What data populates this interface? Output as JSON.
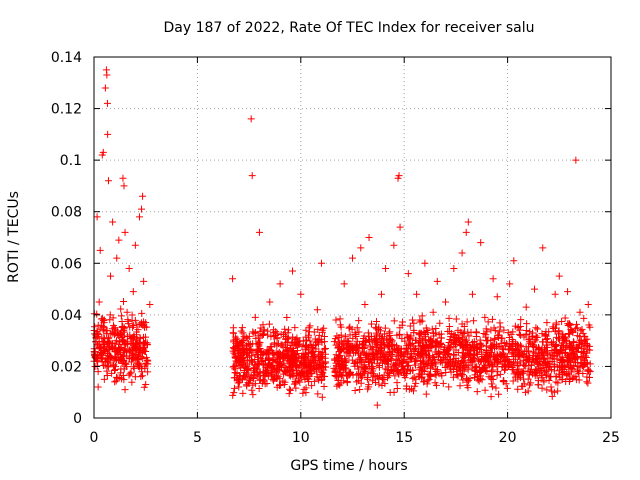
{
  "chart_data": {
    "type": "scatter",
    "title": "Day 187 of 2022, Rate Of TEC Index for receiver salu",
    "xlabel": "GPS time / hours",
    "ylabel": "ROTI / TECUs",
    "xlim": [
      0,
      25
    ],
    "ylim": [
      0,
      0.14
    ],
    "xticks": [
      "0",
      "5",
      "10",
      "15",
      "20",
      "25"
    ],
    "xtick_values": [
      0,
      5,
      10,
      15,
      20,
      25
    ],
    "yticks": [
      "0",
      "0.02",
      "0.04",
      "0.06",
      "0.08",
      "0.1",
      "0.12",
      "0.14"
    ],
    "ytick_values": [
      0,
      0.02,
      0.04,
      0.06,
      0.08,
      0.1,
      0.12,
      0.14
    ],
    "grid": true,
    "marker": "+",
    "color": "#ff0000",
    "series": [
      {
        "name": "ROTI",
        "points": [
          [
            0.0,
            0.022
          ],
          [
            0.1,
            0.031
          ],
          [
            0.15,
            0.078
          ],
          [
            0.2,
            0.018
          ],
          [
            0.25,
            0.045
          ],
          [
            0.3,
            0.065
          ],
          [
            0.35,
            0.027
          ],
          [
            0.4,
            0.102
          ],
          [
            0.45,
            0.103
          ],
          [
            0.5,
            0.038
          ],
          [
            0.55,
            0.128
          ],
          [
            0.6,
            0.135
          ],
          [
            0.62,
            0.133
          ],
          [
            0.65,
            0.122
          ],
          [
            0.66,
            0.11
          ],
          [
            0.7,
            0.092
          ],
          [
            0.75,
            0.024
          ],
          [
            0.8,
            0.055
          ],
          [
            0.9,
            0.076
          ],
          [
            1.0,
            0.035
          ],
          [
            1.1,
            0.062
          ],
          [
            1.2,
            0.069
          ],
          [
            1.3,
            0.019
          ],
          [
            1.4,
            0.093
          ],
          [
            1.45,
            0.09
          ],
          [
            1.5,
            0.072
          ],
          [
            1.6,
            0.041
          ],
          [
            1.7,
            0.058
          ],
          [
            1.8,
            0.029
          ],
          [
            1.9,
            0.049
          ],
          [
            2.0,
            0.067
          ],
          [
            2.1,
            0.023
          ],
          [
            2.2,
            0.078
          ],
          [
            2.3,
            0.081
          ],
          [
            2.35,
            0.086
          ],
          [
            2.4,
            0.053
          ],
          [
            2.5,
            0.037
          ],
          [
            2.6,
            0.021
          ],
          [
            2.7,
            0.044
          ],
          [
            0.2,
            0.012
          ],
          [
            0.5,
            0.015
          ],
          [
            1.0,
            0.014
          ],
          [
            1.5,
            0.011
          ],
          [
            2.0,
            0.016
          ],
          [
            2.5,
            0.013
          ],
          [
            6.7,
            0.054
          ],
          [
            6.8,
            0.02
          ],
          [
            7.0,
            0.012
          ],
          [
            7.2,
            0.033
          ],
          [
            7.4,
            0.027
          ],
          [
            7.6,
            0.116
          ],
          [
            7.65,
            0.094
          ],
          [
            7.8,
            0.039
          ],
          [
            8.0,
            0.072
          ],
          [
            8.2,
            0.018
          ],
          [
            8.5,
            0.045
          ],
          [
            8.8,
            0.022
          ],
          [
            9.0,
            0.052
          ],
          [
            9.2,
            0.013
          ],
          [
            9.4,
            0.031
          ],
          [
            9.6,
            0.057
          ],
          [
            9.8,
            0.025
          ],
          [
            10.0,
            0.048
          ],
          [
            10.2,
            0.016
          ],
          [
            10.4,
            0.035
          ],
          [
            10.6,
            0.028
          ],
          [
            10.8,
            0.042
          ],
          [
            11.0,
            0.06
          ],
          [
            11.1,
            0.021
          ],
          [
            11.7,
            0.038
          ],
          [
            11.9,
            0.017
          ],
          [
            12.1,
            0.052
          ],
          [
            12.3,
            0.029
          ],
          [
            12.5,
            0.062
          ],
          [
            12.7,
            0.014
          ],
          [
            12.9,
            0.066
          ],
          [
            13.1,
            0.044
          ],
          [
            13.3,
            0.07
          ],
          [
            13.5,
            0.023
          ],
          [
            13.7,
            0.005
          ],
          [
            13.9,
            0.048
          ],
          [
            14.1,
            0.058
          ],
          [
            14.3,
            0.032
          ],
          [
            14.5,
            0.067
          ],
          [
            14.7,
            0.093
          ],
          [
            14.75,
            0.094
          ],
          [
            14.8,
            0.074
          ],
          [
            15.0,
            0.019
          ],
          [
            15.2,
            0.056
          ],
          [
            15.4,
            0.038
          ],
          [
            15.6,
            0.048
          ],
          [
            15.8,
            0.026
          ],
          [
            16.0,
            0.06
          ],
          [
            16.2,
            0.015
          ],
          [
            16.4,
            0.041
          ],
          [
            16.6,
            0.053
          ],
          [
            16.8,
            0.031
          ],
          [
            17.0,
            0.045
          ],
          [
            17.2,
            0.02
          ],
          [
            17.4,
            0.058
          ],
          [
            17.6,
            0.034
          ],
          [
            17.8,
            0.064
          ],
          [
            18.0,
            0.072
          ],
          [
            18.1,
            0.076
          ],
          [
            18.3,
            0.048
          ],
          [
            18.5,
            0.027
          ],
          [
            18.7,
            0.068
          ],
          [
            18.9,
            0.039
          ],
          [
            19.1,
            0.016
          ],
          [
            19.3,
            0.054
          ],
          [
            19.5,
            0.047
          ],
          [
            19.7,
            0.031
          ],
          [
            19.9,
            0.022
          ],
          [
            20.1,
            0.052
          ],
          [
            20.3,
            0.061
          ],
          [
            20.5,
            0.035
          ],
          [
            20.7,
            0.018
          ],
          [
            20.9,
            0.043
          ],
          [
            21.1,
            0.029
          ],
          [
            21.3,
            0.05
          ],
          [
            21.5,
            0.024
          ],
          [
            21.7,
            0.066
          ],
          [
            21.9,
            0.037
          ],
          [
            22.1,
            0.012
          ],
          [
            22.3,
            0.048
          ],
          [
            22.5,
            0.055
          ],
          [
            22.7,
            0.028
          ],
          [
            22.9,
            0.049
          ],
          [
            23.1,
            0.019
          ],
          [
            23.3,
            0.1
          ],
          [
            23.5,
            0.041
          ],
          [
            23.7,
            0.025
          ],
          [
            23.9,
            0.044
          ],
          [
            24.0,
            0.018
          ]
        ],
        "dense_bands": [
          {
            "x_start": 0.0,
            "x_end": 2.6,
            "y_low": 0.01,
            "y_high": 0.046,
            "count": 340
          },
          {
            "x_start": 6.7,
            "x_end": 11.2,
            "y_low": 0.006,
            "y_high": 0.04,
            "count": 640
          },
          {
            "x_start": 11.6,
            "x_end": 24.0,
            "y_low": 0.006,
            "y_high": 0.042,
            "count": 1500
          }
        ]
      }
    ]
  }
}
